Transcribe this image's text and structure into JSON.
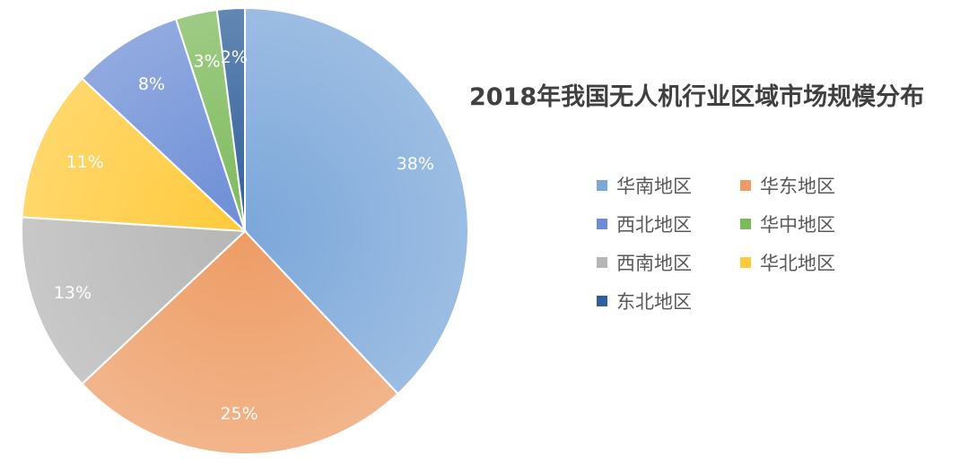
{
  "chart_data": {
    "type": "pie",
    "title": "2018年我国无人机行业区域市场规模分布",
    "series": [
      {
        "name": "华南地区",
        "value": 38,
        "label": "38%",
        "color": "#7BA7D9"
      },
      {
        "name": "华东地区",
        "value": 25,
        "label": "25%",
        "color": "#EE9C64"
      },
      {
        "name": "西南地区",
        "value": 13,
        "label": "13%",
        "color": "#B6B6B6"
      },
      {
        "name": "华北地区",
        "value": 11,
        "label": "11%",
        "color": "#FFC93A"
      },
      {
        "name": "西北地区",
        "value": 8,
        "label": "8%",
        "color": "#6C8DD6"
      },
      {
        "name": "华中地区",
        "value": 3,
        "label": "3%",
        "color": "#7DBA5B"
      },
      {
        "name": "东北地区",
        "value": 2,
        "label": "2%",
        "color": "#2F5F9A"
      }
    ],
    "legend_order": [
      "华南地区",
      "华东地区",
      "西北地区",
      "华中地区",
      "西南地区",
      "华北地区",
      "东北地区"
    ],
    "legend_position": "right"
  }
}
